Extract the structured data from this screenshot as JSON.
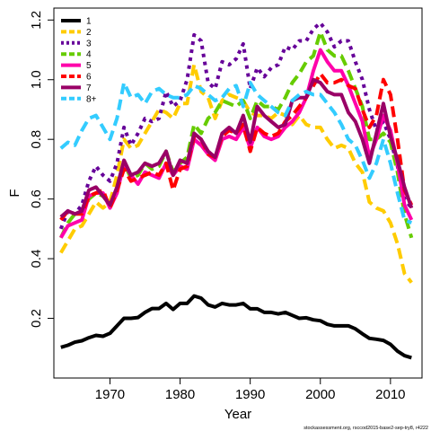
{
  "chart_data": {
    "type": "line",
    "xlabel": "Year",
    "ylabel": "F",
    "xlim": [
      1962,
      2014.5
    ],
    "ylim": [
      0.0,
      1.24
    ],
    "xticks": [
      1970,
      1980,
      1990,
      2000,
      2010
    ],
    "yticks": [
      0.2,
      0.4,
      0.6,
      0.8,
      1.0,
      1.2
    ],
    "grid": false,
    "legend_position": "top-left",
    "footer": "stockassessment.org, rsccod2015-base2-sep-try8, r4222",
    "x": [
      1963,
      1964,
      1965,
      1966,
      1967,
      1968,
      1969,
      1970,
      1971,
      1972,
      1973,
      1974,
      1975,
      1976,
      1977,
      1978,
      1979,
      1980,
      1981,
      1982,
      1983,
      1984,
      1985,
      1986,
      1987,
      1988,
      1989,
      1990,
      1991,
      1992,
      1993,
      1994,
      1995,
      1996,
      1997,
      1998,
      1999,
      2000,
      2001,
      2002,
      2003,
      2004,
      2005,
      2006,
      2007,
      2008,
      2009,
      2010,
      2011,
      2012,
      2013
    ],
    "series": [
      {
        "name": "1",
        "color": "#000000",
        "dash": "solid",
        "values": [
          0.103,
          0.11,
          0.12,
          0.125,
          0.135,
          0.143,
          0.14,
          0.15,
          0.175,
          0.2,
          0.2,
          0.203,
          0.22,
          0.233,
          0.233,
          0.25,
          0.23,
          0.25,
          0.25,
          0.275,
          0.268,
          0.245,
          0.238,
          0.25,
          0.245,
          0.245,
          0.25,
          0.232,
          0.232,
          0.22,
          0.22,
          0.215,
          0.22,
          0.21,
          0.2,
          0.202,
          0.195,
          0.192,
          0.18,
          0.175,
          0.175,
          0.175,
          0.165,
          0.148,
          0.133,
          0.13,
          0.126,
          0.113,
          0.09,
          0.075,
          0.068
        ]
      },
      {
        "name": "2",
        "color": "#ffcc00",
        "dash": "dash",
        "values": [
          0.42,
          0.46,
          0.5,
          0.51,
          0.55,
          0.59,
          0.57,
          0.59,
          0.68,
          0.8,
          0.77,
          0.78,
          0.82,
          0.86,
          0.9,
          0.89,
          0.87,
          0.92,
          0.92,
          1.05,
          0.96,
          0.94,
          0.87,
          0.93,
          0.95,
          0.94,
          0.93,
          0.89,
          0.88,
          0.88,
          0.87,
          0.89,
          0.88,
          0.85,
          0.88,
          0.85,
          0.84,
          0.84,
          0.8,
          0.77,
          0.78,
          0.77,
          0.72,
          0.69,
          0.59,
          0.57,
          0.56,
          0.52,
          0.45,
          0.35,
          0.32
        ]
      },
      {
        "name": "3",
        "color": "#660099",
        "dash": "dot",
        "values": [
          0.5,
          0.56,
          0.55,
          0.58,
          0.66,
          0.71,
          0.68,
          0.66,
          0.72,
          0.84,
          0.78,
          0.82,
          0.87,
          0.86,
          0.87,
          0.96,
          0.91,
          0.93,
          1.0,
          1.15,
          1.13,
          0.99,
          0.97,
          1.06,
          1.05,
          1.07,
          1.12,
          0.97,
          1.04,
          1.01,
          1.04,
          1.05,
          1.11,
          1.1,
          1.13,
          1.13,
          1.17,
          1.19,
          1.16,
          1.11,
          1.13,
          1.13,
          1.06,
          1.0,
          0.9,
          0.83,
          0.86,
          0.8,
          0.71,
          0.6,
          0.57
        ]
      },
      {
        "name": "4",
        "color": "#66cc00",
        "dash": "dash",
        "values": [
          0.47,
          0.52,
          0.55,
          0.55,
          0.6,
          0.62,
          0.61,
          0.58,
          0.63,
          0.72,
          0.67,
          0.68,
          0.72,
          0.7,
          0.71,
          0.76,
          0.69,
          0.72,
          0.74,
          0.85,
          0.82,
          0.87,
          0.89,
          0.93,
          0.92,
          0.91,
          0.93,
          0.87,
          0.93,
          0.91,
          0.91,
          0.9,
          0.94,
          0.99,
          1.02,
          1.06,
          1.08,
          1.16,
          1.1,
          1.08,
          1.08,
          1.03,
          0.97,
          0.91,
          0.8,
          0.8,
          0.82,
          0.79,
          0.69,
          0.55,
          0.47
        ]
      },
      {
        "name": "5",
        "color": "#ff00aa",
        "dash": "solid",
        "values": [
          0.47,
          0.51,
          0.52,
          0.53,
          0.61,
          0.62,
          0.62,
          0.57,
          0.62,
          0.72,
          0.68,
          0.65,
          0.69,
          0.68,
          0.67,
          0.72,
          0.68,
          0.71,
          0.7,
          0.8,
          0.78,
          0.75,
          0.73,
          0.8,
          0.81,
          0.8,
          0.84,
          0.77,
          0.84,
          0.81,
          0.8,
          0.81,
          0.84,
          0.86,
          0.89,
          0.94,
          1.03,
          1.1,
          1.06,
          1.03,
          1.03,
          0.98,
          0.92,
          0.86,
          0.74,
          0.8,
          0.88,
          0.83,
          0.72,
          0.58,
          0.53
        ]
      },
      {
        "name": "6",
        "color": "#ff0000",
        "dash": "dash",
        "values": [
          0.53,
          0.56,
          0.55,
          0.55,
          0.61,
          0.62,
          0.63,
          0.57,
          0.63,
          0.7,
          0.66,
          0.67,
          0.68,
          0.69,
          0.68,
          0.72,
          0.63,
          0.7,
          0.71,
          0.81,
          0.8,
          0.75,
          0.74,
          0.81,
          0.83,
          0.82,
          0.85,
          0.76,
          0.84,
          0.82,
          0.81,
          0.82,
          0.86,
          0.88,
          0.91,
          0.94,
          0.98,
          1.02,
          0.99,
          0.99,
          1.0,
          0.98,
          0.97,
          0.9,
          0.84,
          0.88,
          1.0,
          0.95,
          0.8,
          0.63,
          0.58
        ]
      },
      {
        "name": "7",
        "color": "#990066",
        "dash": "solid",
        "values": [
          0.54,
          0.56,
          0.55,
          0.56,
          0.63,
          0.64,
          0.61,
          0.58,
          0.64,
          0.73,
          0.68,
          0.69,
          0.72,
          0.71,
          0.72,
          0.76,
          0.68,
          0.73,
          0.72,
          0.82,
          0.8,
          0.76,
          0.74,
          0.82,
          0.84,
          0.82,
          0.88,
          0.79,
          0.91,
          0.88,
          0.86,
          0.84,
          0.85,
          0.93,
          0.94,
          0.94,
          1.0,
          0.99,
          0.96,
          0.95,
          0.95,
          0.89,
          0.86,
          0.8,
          0.72,
          0.82,
          0.92,
          0.81,
          0.73,
          0.64,
          0.57
        ]
      },
      {
        "name": "8+",
        "color": "#33ccff",
        "dash": "dash",
        "values": [
          0.77,
          0.79,
          0.78,
          0.83,
          0.87,
          0.88,
          0.84,
          0.8,
          0.87,
          0.99,
          0.94,
          0.95,
          0.92,
          0.96,
          0.97,
          0.95,
          0.94,
          0.94,
          0.95,
          0.98,
          0.97,
          0.95,
          0.93,
          0.94,
          0.97,
          0.98,
          0.91,
          0.99,
          0.95,
          0.93,
          0.91,
          0.89,
          0.88,
          0.93,
          0.95,
          0.96,
          0.95,
          0.95,
          0.92,
          0.89,
          0.85,
          0.8,
          0.78,
          0.73,
          0.67,
          0.72,
          0.8,
          0.72,
          0.62,
          0.53,
          0.52
        ]
      }
    ]
  }
}
